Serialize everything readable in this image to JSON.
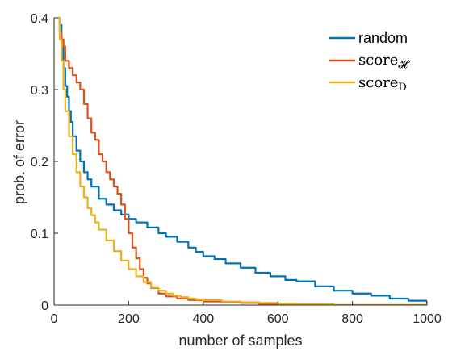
{
  "chart_data": {
    "type": "line",
    "xlabel": "number of samples",
    "ylabel": "prob. of error",
    "xlim": [
      0,
      1000
    ],
    "ylim": [
      0,
      0.4
    ],
    "xticks": [
      0,
      200,
      400,
      600,
      800,
      1000
    ],
    "yticks": [
      0,
      0.1,
      0.2,
      0.3,
      0.4
    ],
    "xtick_labels": [
      "0",
      "200",
      "400",
      "600",
      "800",
      "1000"
    ],
    "ytick_labels": [
      "0",
      "0.1",
      "0.2",
      "0.3",
      "0.4"
    ],
    "grid": false,
    "legend_position": "top-right",
    "legend": {
      "random": "random",
      "score_h_base": "score",
      "score_h_sub": "𝓗",
      "score_d_base": "score",
      "score_d_sub": "D"
    },
    "series": [
      {
        "name": "random",
        "color": "#0072BD",
        "x": [
          10,
          15,
          20,
          25,
          30,
          35,
          40,
          45,
          50,
          60,
          70,
          80,
          90,
          100,
          120,
          140,
          160,
          180,
          200,
          220,
          250,
          280,
          300,
          330,
          360,
          380,
          400,
          430,
          460,
          500,
          540,
          580,
          620,
          650,
          700,
          750,
          800,
          850,
          900,
          950,
          1000
        ],
        "y": [
          0.4,
          0.39,
          0.37,
          0.33,
          0.305,
          0.29,
          0.27,
          0.255,
          0.235,
          0.215,
          0.2,
          0.185,
          0.175,
          0.165,
          0.148,
          0.14,
          0.132,
          0.126,
          0.12,
          0.115,
          0.108,
          0.1,
          0.095,
          0.088,
          0.08,
          0.074,
          0.068,
          0.064,
          0.058,
          0.052,
          0.045,
          0.04,
          0.035,
          0.033,
          0.026,
          0.02,
          0.016,
          0.013,
          0.009,
          0.006,
          0.002
        ]
      },
      {
        "name": "score_H",
        "color": "#D95319",
        "x": [
          10,
          15,
          20,
          25,
          30,
          40,
          50,
          60,
          70,
          80,
          90,
          100,
          110,
          120,
          130,
          140,
          150,
          160,
          170,
          180,
          190,
          200,
          210,
          220,
          230,
          240,
          250,
          260,
          280,
          300,
          330,
          360,
          400,
          450,
          500,
          550,
          600,
          650,
          700,
          750,
          800,
          900,
          1000
        ],
        "y": [
          0.4,
          0.38,
          0.37,
          0.36,
          0.34,
          0.33,
          0.32,
          0.31,
          0.3,
          0.28,
          0.26,
          0.24,
          0.23,
          0.21,
          0.2,
          0.185,
          0.175,
          0.165,
          0.155,
          0.14,
          0.12,
          0.1,
          0.08,
          0.065,
          0.05,
          0.038,
          0.03,
          0.024,
          0.016,
          0.012,
          0.009,
          0.007,
          0.005,
          0.004,
          0.003,
          0.002,
          0.002,
          0.001,
          0.001,
          0.0,
          0.0,
          0.0,
          0.0
        ]
      },
      {
        "name": "score_D",
        "color": "#EDB120",
        "x": [
          10,
          15,
          20,
          25,
          30,
          40,
          50,
          60,
          70,
          80,
          90,
          100,
          110,
          120,
          140,
          160,
          180,
          200,
          220,
          240,
          260,
          280,
          300,
          320,
          340,
          360,
          380,
          400,
          450,
          500,
          550,
          600,
          650,
          700,
          750,
          800,
          900,
          1000
        ],
        "y": [
          0.4,
          0.37,
          0.34,
          0.3,
          0.27,
          0.235,
          0.21,
          0.185,
          0.165,
          0.15,
          0.135,
          0.125,
          0.115,
          0.105,
          0.09,
          0.075,
          0.062,
          0.05,
          0.04,
          0.032,
          0.025,
          0.02,
          0.016,
          0.013,
          0.011,
          0.009,
          0.008,
          0.007,
          0.005,
          0.004,
          0.003,
          0.002,
          0.001,
          0.001,
          0.0,
          0.0,
          0.0,
          0.0
        ]
      }
    ]
  }
}
